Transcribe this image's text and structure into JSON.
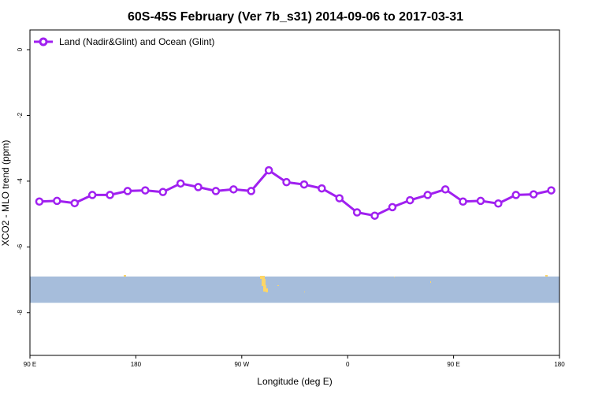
{
  "colors": {
    "series": "#a020f0",
    "band": "#a6bddb",
    "land": "#fdd668",
    "axis": "#000000"
  },
  "chart_data": {
    "type": "line",
    "title": "60S-45S February (Ver 7b_s31)   2014-09-06 to 2017-03-31",
    "xlabel": "Longitude (deg E)",
    "ylabel": "XCO2 - MLO trend (ppm)",
    "x_tick_values": [
      90,
      180,
      270,
      360,
      450,
      540
    ],
    "x_tick_labels": [
      "90 E",
      "180",
      "90 W",
      "0",
      "90 E",
      "180"
    ],
    "xlim": [
      90,
      540
    ],
    "y_tick_values": [
      0,
      -2,
      -4,
      -6,
      -8
    ],
    "y_tick_labels": [
      "0",
      "-2",
      "-4",
      "-6",
      "-8"
    ],
    "ylim": [
      -9.3,
      0.6
    ],
    "grid": false,
    "legend_position": "top-left",
    "band_y_range": [
      -7.7,
      -6.9
    ],
    "series": [
      {
        "name": "Land (Nadir&Glint) and Ocean (Glint)",
        "x": [
          98,
          113,
          128,
          143,
          158,
          173,
          188,
          203,
          218,
          233,
          248,
          263,
          278,
          293,
          308,
          323,
          338,
          353,
          368,
          383,
          398,
          413,
          428,
          443,
          458,
          473,
          488,
          503,
          518,
          533
        ],
        "y": [
          -4.62,
          -4.6,
          -4.67,
          -4.42,
          -4.42,
          -4.3,
          -4.28,
          -4.33,
          -4.07,
          -4.18,
          -4.3,
          -4.25,
          -4.3,
          -3.67,
          -4.03,
          -4.1,
          -4.22,
          -4.52,
          -4.95,
          -5.05,
          -4.79,
          -4.58,
          -4.42,
          -4.25,
          -4.62,
          -4.6,
          -4.68,
          -4.42,
          -4.4,
          -4.28
        ]
      }
    ]
  }
}
